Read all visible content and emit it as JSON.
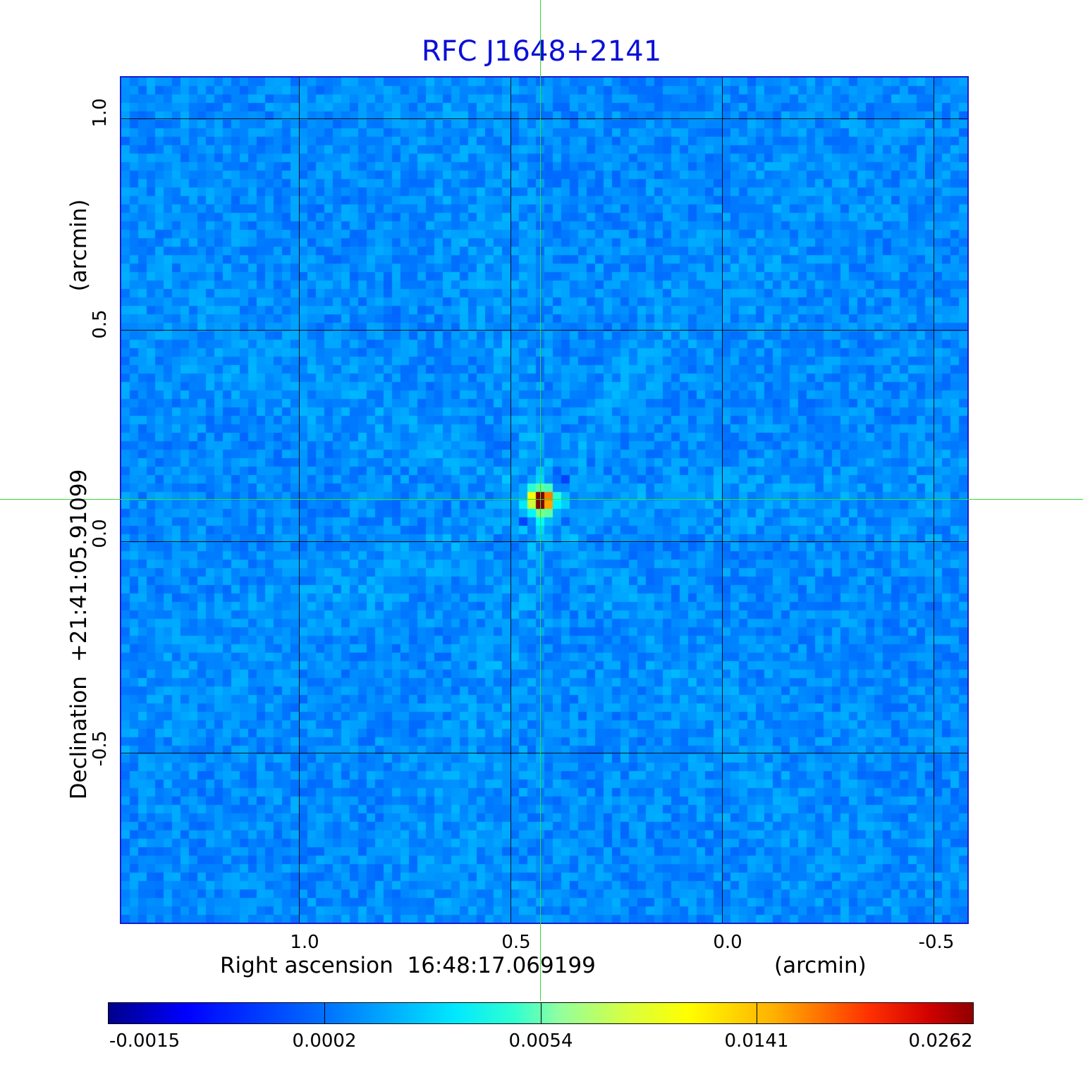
{
  "title": "RFC J1648+2141",
  "x_axis": {
    "label": "Right ascension  16:48:17.069199",
    "unit": "(arcmin)",
    "ticks": [
      "1.0",
      "0.5",
      "0.0",
      "-0.5"
    ]
  },
  "y_axis": {
    "label": "Declination  +21:41:05.91099",
    "unit": "(arcmin)",
    "ticks": [
      "1.0",
      "0.5",
      "0.0",
      "-0.5"
    ]
  },
  "colorbar": {
    "labels": [
      "-0.0015",
      "0.0002",
      "0.0054",
      "0.0141",
      "0.0262"
    ]
  },
  "colors": {
    "title": "#0a10d8",
    "frame": "#1a1ad0",
    "crosshair": "#33dd33",
    "background_map": "#1a78f0"
  }
}
